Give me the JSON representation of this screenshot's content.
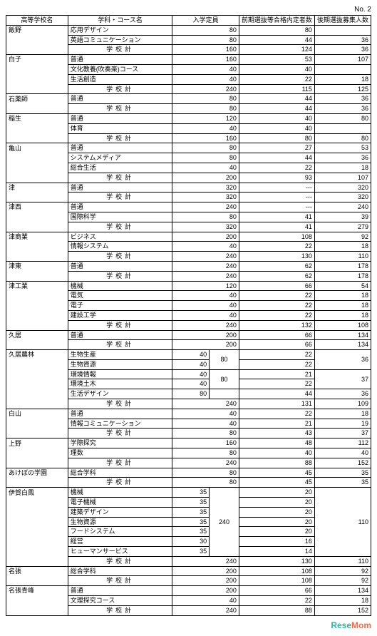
{
  "page_label": "No. 2",
  "headers": {
    "school": "高等学校名",
    "course": "学科・コース名",
    "capacity": "入学定員",
    "pass": "前期選抜等合格内定者数",
    "recruit": "後期選抜募集人数"
  },
  "footer": {
    "brand1": "Rese",
    "brand2": "Mom"
  },
  "rows": [
    {
      "school": "飯野",
      "course": "応用デザイン",
      "cap": "80",
      "pass": "80",
      "rec": ""
    },
    {
      "course": "英語コミュニケーション",
      "cap": "80",
      "pass": "44",
      "rec": "36"
    },
    {
      "subtotal": true,
      "cap": "160",
      "pass": "124",
      "rec": "36"
    },
    {
      "school": "白子",
      "course": "普通",
      "cap": "160",
      "pass": "53",
      "rec": "107"
    },
    {
      "course": "文化教養(吹奏楽)コース",
      "cap": "40",
      "pass": "40",
      "rec": ""
    },
    {
      "course": "生活創造",
      "cap": "40",
      "pass": "22",
      "rec": "18"
    },
    {
      "subtotal": true,
      "cap": "240",
      "pass": "115",
      "rec": "125"
    },
    {
      "school": "石薬師",
      "course": "普通",
      "cap": "80",
      "pass": "44",
      "rec": "36"
    },
    {
      "subtotal": true,
      "cap": "80",
      "pass": "44",
      "rec": "36"
    },
    {
      "school": "稲生",
      "course": "普通",
      "cap": "120",
      "pass": "40",
      "rec": "80"
    },
    {
      "course": "体育",
      "cap": "40",
      "pass": "40",
      "rec": ""
    },
    {
      "subtotal": true,
      "cap": "160",
      "pass": "80",
      "rec": "80"
    },
    {
      "school": "亀山",
      "course": "普通",
      "cap": "80",
      "pass": "27",
      "rec": "53"
    },
    {
      "course": "システムメディア",
      "cap": "80",
      "pass": "44",
      "rec": "36"
    },
    {
      "course": "総合生活",
      "cap": "40",
      "pass": "22",
      "rec": "18"
    },
    {
      "subtotal": true,
      "cap": "200",
      "pass": "93",
      "rec": "107"
    },
    {
      "school": "津",
      "course": "普通",
      "cap": "320",
      "pass": "---",
      "rec": "320"
    },
    {
      "subtotal": true,
      "cap": "320",
      "pass": "---",
      "rec": "320"
    },
    {
      "school": "津西",
      "course": "普通",
      "cap": "240",
      "pass": "---",
      "rec": "240"
    },
    {
      "course": "国際科学",
      "cap": "80",
      "pass": "41",
      "rec": "39"
    },
    {
      "subtotal": true,
      "cap": "320",
      "pass": "41",
      "rec": "279"
    },
    {
      "school": "津商業",
      "course": "ビジネス",
      "cap": "200",
      "pass": "108",
      "rec": "92"
    },
    {
      "course": "情報システム",
      "cap": "40",
      "pass": "22",
      "rec": "18"
    },
    {
      "subtotal": true,
      "cap": "240",
      "pass": "130",
      "rec": "110"
    },
    {
      "school": "津東",
      "course": "普通",
      "cap": "240",
      "pass": "62",
      "rec": "178"
    },
    {
      "subtotal": true,
      "cap": "240",
      "pass": "62",
      "rec": "178"
    },
    {
      "school": "津工業",
      "course": "機械",
      "cap": "120",
      "pass": "66",
      "rec": "54"
    },
    {
      "course": "電気",
      "cap": "40",
      "pass": "22",
      "rec": "18"
    },
    {
      "course": "電子",
      "cap": "40",
      "pass": "22",
      "rec": "18"
    },
    {
      "course": "建設工学",
      "cap": "40",
      "pass": "22",
      "rec": "18"
    },
    {
      "subtotal": true,
      "cap": "240",
      "pass": "132",
      "rec": "108"
    },
    {
      "school": "久居",
      "course": "普通",
      "cap": "200",
      "pass": "66",
      "rec": "134"
    },
    {
      "subtotal": true,
      "cap": "200",
      "pass": "66",
      "rec": "134"
    },
    {
      "school": "久居農林",
      "course": "生物生産",
      "cap": "40",
      "grp": "80",
      "grprows": 2,
      "pass": "22",
      "rec": "36"
    },
    {
      "course": "生物資源",
      "cap": "40",
      "pass": "22",
      "rec": ""
    },
    {
      "course": "環境情報",
      "cap": "40",
      "grp": "80",
      "grprows": 2,
      "pass": "21",
      "rec": "37"
    },
    {
      "course": "環境土木",
      "cap": "40",
      "pass": "22",
      "rec": ""
    },
    {
      "course": "生活デザイン",
      "cap": "80",
      "grp": "",
      "pass": "44",
      "rec": "36"
    },
    {
      "subtotal": true,
      "cap": "240",
      "pass": "131",
      "rec": "109"
    },
    {
      "school": "白山",
      "course": "普通",
      "cap": "40",
      "pass": "22",
      "rec": "18"
    },
    {
      "course": "情報コミュニケーション",
      "cap": "40",
      "pass": "21",
      "rec": "19"
    },
    {
      "subtotal": true,
      "cap": "80",
      "pass": "43",
      "rec": "37"
    },
    {
      "school": "上野",
      "course": "学際探究",
      "cap": "160",
      "pass": "48",
      "rec": "112"
    },
    {
      "course": "理数",
      "cap": "80",
      "pass": "40",
      "rec": "40"
    },
    {
      "subtotal": true,
      "cap": "240",
      "pass": "88",
      "rec": "152"
    },
    {
      "school": "あけぼの学園",
      "course": "総合学科",
      "cap": "80",
      "pass": "45",
      "rec": "35"
    },
    {
      "subtotal": true,
      "cap": "80",
      "pass": "45",
      "rec": "35"
    },
    {
      "school": "伊賀白鳳",
      "course": "機械",
      "cap": "35",
      "grp": "240",
      "grprows": 7,
      "pass": "20",
      "rec": "110"
    },
    {
      "course": "電子機械",
      "cap": "35",
      "pass": "20",
      "rec": ""
    },
    {
      "course": "建築デザイン",
      "cap": "35",
      "pass": "20",
      "rec": ""
    },
    {
      "course": "生物資源",
      "cap": "35",
      "pass": "20",
      "rec": ""
    },
    {
      "course": "フードシステム",
      "cap": "35",
      "pass": "20",
      "rec": ""
    },
    {
      "course": "経営",
      "cap": "30",
      "pass": "16",
      "rec": ""
    },
    {
      "course": "ヒューマンサービス",
      "cap": "35",
      "pass": "14",
      "rec": ""
    },
    {
      "subtotal": true,
      "cap": "240",
      "pass": "130",
      "rec": "110"
    },
    {
      "school": "名張",
      "course": "総合学科",
      "cap": "200",
      "pass": "108",
      "rec": "92"
    },
    {
      "subtotal": true,
      "cap": "200",
      "pass": "108",
      "rec": "92"
    },
    {
      "school": "名張青峰",
      "course": "普通",
      "cap": "200",
      "pass": "66",
      "rec": "134"
    },
    {
      "course": "文理探究コース",
      "cap": "40",
      "pass": "22",
      "rec": "18"
    },
    {
      "subtotal": true,
      "cap": "240",
      "pass": "88",
      "rec": "152"
    }
  ]
}
